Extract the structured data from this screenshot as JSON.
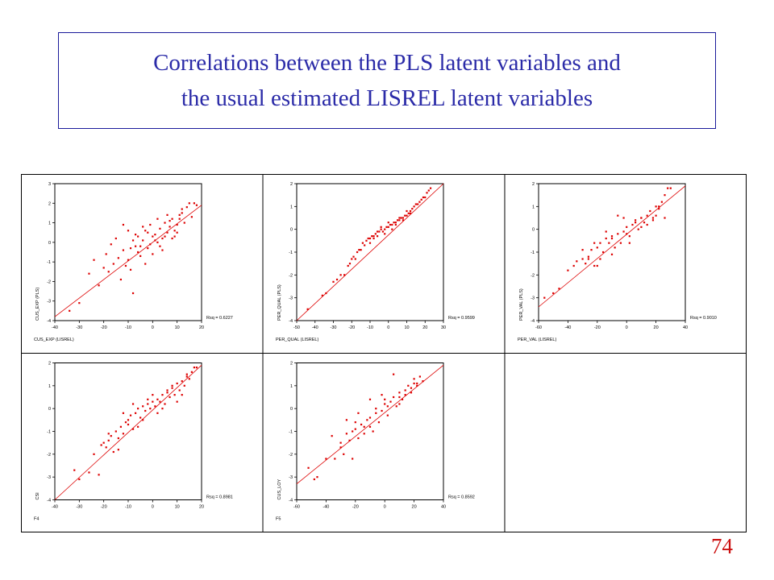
{
  "slide": {
    "title_line1": "Correlations between the PLS latent variables and",
    "title_line2": "the usual estimated LISREL latent variables",
    "page_number": "74"
  },
  "colors": {
    "title": "#2b2ba8",
    "points": "#dd0000",
    "page_number": "#cc1111",
    "grid": "#000000"
  },
  "chart_data": [
    {
      "type": "scatter",
      "xlabel": "CUS_EXP (LISREL)",
      "ylabel": "CUS_EXP (PLS)",
      "xlim": [
        -40,
        20
      ],
      "ylim": [
        -4,
        3
      ],
      "xticks": [
        -40,
        -30,
        -20,
        -10,
        0,
        10,
        20
      ],
      "yticks": [
        -4,
        -3,
        -2,
        -1,
        0,
        1,
        2,
        3
      ],
      "rsq_label": "Rsq = 0.6227",
      "fit_line": {
        "x": [
          -40,
          20
        ],
        "y": [
          -3.8,
          1.9
        ]
      },
      "points_x": [
        -34,
        -30,
        -26,
        -24,
        -22,
        -20,
        -19,
        -18,
        -17,
        -16,
        -15,
        -14,
        -13,
        -12,
        -11,
        -10,
        -9,
        -8,
        -7,
        -6,
        -5,
        -4,
        -3,
        -2,
        -1,
        0,
        1,
        2,
        3,
        4,
        5,
        6,
        7,
        8,
        9,
        10,
        11,
        12,
        13,
        14,
        15,
        16,
        17,
        18,
        -12,
        -10,
        -8,
        -6,
        -4,
        -2,
        0,
        2,
        4,
        6,
        8,
        10,
        12,
        -9,
        -7,
        -5,
        -3,
        -1,
        1,
        3,
        5,
        7,
        9,
        11
      ],
      "points_y": [
        -3.5,
        -3.1,
        -1.6,
        -0.9,
        -2.2,
        -1.3,
        -0.6,
        -1.5,
        -0.1,
        -1.1,
        0.2,
        -0.8,
        -1.9,
        -0.4,
        -1.2,
        0.6,
        -0.3,
        -2.6,
        -0.2,
        0.3,
        -0.7,
        0.1,
        -1.1,
        0.5,
        -0.1,
        0.3,
        0.4,
        0.0,
        0.7,
        0.2,
        1.0,
        0.5,
        0.8,
        1.2,
        0.6,
        0.9,
        1.4,
        1.5,
        1.0,
        1.8,
        2.0,
        1.3,
        2.0,
        1.9,
        0.9,
        -0.9,
        0.1,
        -0.5,
        0.8,
        -0.3,
        -0.6,
        1.2,
        -0.4,
        1.4,
        0.2,
        0.5,
        1.7,
        -1.4,
        0.4,
        -0.2,
        0.6,
        0.9,
        0.1,
        -0.2,
        0.3,
        1.1,
        0.3,
        1.2
      ]
    },
    {
      "type": "scatter",
      "xlabel": "PER_QUAL (LISREL)",
      "ylabel": "PER_QUAL (PLS)",
      "xlim": [
        -50,
        30
      ],
      "ylim": [
        -4,
        2
      ],
      "xticks": [
        -50,
        -40,
        -30,
        -20,
        -10,
        0,
        10,
        20,
        30
      ],
      "yticks": [
        -4,
        -3,
        -2,
        -1,
        0,
        1,
        2
      ],
      "rsq_label": "Rsq = 0.9599",
      "fit_line": {
        "x": [
          -50,
          30
        ],
        "y": [
          -4.0,
          2.0
        ]
      },
      "points_x": [
        -44,
        -36,
        -34,
        -30,
        -28,
        -26,
        -24,
        -22,
        -21,
        -20,
        -19,
        -18,
        -17,
        -16,
        -15,
        -14,
        -13,
        -12,
        -11,
        -10,
        -9,
        -8,
        -7,
        -6,
        -5,
        -4,
        -3,
        -2,
        -1,
        0,
        1,
        2,
        3,
        4,
        5,
        6,
        7,
        8,
        9,
        10,
        11,
        12,
        13,
        14,
        15,
        16,
        17,
        18,
        19,
        20,
        21,
        22,
        23,
        -10,
        -8,
        -6,
        -4,
        -2,
        0,
        2,
        4,
        6,
        8,
        10,
        12
      ],
      "points_y": [
        -3.5,
        -2.9,
        -2.8,
        -2.3,
        -2.2,
        -2.0,
        -2.0,
        -1.6,
        -1.5,
        -1.3,
        -1.2,
        -1.3,
        -1.0,
        -0.9,
        -0.9,
        -0.6,
        -0.7,
        -0.5,
        -0.4,
        -0.4,
        -0.3,
        -0.3,
        -0.2,
        -0.1,
        -0.1,
        0.0,
        -0.1,
        0.0,
        0.1,
        0.1,
        0.2,
        0.2,
        0.3,
        0.3,
        0.4,
        0.4,
        0.5,
        0.5,
        0.6,
        0.6,
        0.7,
        0.8,
        0.9,
        1.0,
        1.1,
        1.1,
        1.2,
        1.3,
        1.4,
        1.4,
        1.6,
        1.7,
        1.8,
        -0.6,
        -0.4,
        -0.3,
        0.1,
        -0.2,
        0.3,
        0.0,
        0.2,
        0.5,
        0.4,
        0.8,
        0.7
      ]
    },
    {
      "type": "scatter",
      "xlabel": "PER_VAL (LISREL)",
      "ylabel": "PER_VAL (PLS)",
      "xlim": [
        -60,
        40
      ],
      "ylim": [
        -4,
        2
      ],
      "xticks": [
        -60,
        -40,
        -20,
        0,
        20,
        40
      ],
      "yticks": [
        -4,
        -3,
        -2,
        -1,
        0,
        1,
        2
      ],
      "rsq_label": "Rsq = 0.9010",
      "fit_line": {
        "x": [
          -60,
          40
        ],
        "y": [
          -3.4,
          1.9
        ]
      },
      "points_x": [
        -56,
        -50,
        -46,
        -40,
        -36,
        -34,
        -30,
        -28,
        -26,
        -24,
        -22,
        -20,
        -18,
        -16,
        -14,
        -12,
        -10,
        -8,
        -6,
        -4,
        -2,
        0,
        2,
        4,
        6,
        8,
        10,
        12,
        14,
        16,
        18,
        20,
        22,
        24,
        26,
        28,
        30,
        -30,
        -26,
        -22,
        -18,
        -14,
        -10,
        -6,
        -2,
        2,
        6,
        10,
        14,
        18,
        22,
        26,
        -20,
        -10,
        0,
        10,
        20
      ],
      "points_y": [
        -3.0,
        -2.8,
        -2.6,
        -1.8,
        -1.6,
        -1.4,
        -1.3,
        -1.5,
        -1.2,
        -0.9,
        -1.6,
        -0.8,
        -0.6,
        -1.0,
        -0.4,
        -0.6,
        -0.3,
        -0.8,
        -0.2,
        -0.6,
        -0.1,
        0.1,
        -0.3,
        0.2,
        0.4,
        0.0,
        0.5,
        0.3,
        0.6,
        0.8,
        0.5,
        1.0,
        0.9,
        1.2,
        1.5,
        1.8,
        1.8,
        -0.9,
        -1.3,
        -0.6,
        -1.3,
        -0.1,
        -1.1,
        0.6,
        0.5,
        -0.6,
        0.3,
        0.1,
        0.2,
        0.4,
        1.0,
        0.5,
        -1.6,
        -0.4,
        -0.2,
        0.5,
        0.6
      ]
    },
    {
      "type": "scatter",
      "xlabel": "F4",
      "ylabel": "CSI",
      "xlim": [
        -40,
        20
      ],
      "ylim": [
        -4,
        2
      ],
      "xticks": [
        -40,
        -30,
        -20,
        -10,
        0,
        10,
        20
      ],
      "yticks": [
        -4,
        -3,
        -2,
        -1,
        0,
        1,
        2
      ],
      "rsq_label": "Rsq = 0.8981",
      "fit_line": {
        "x": [
          -40,
          20
        ],
        "y": [
          -4.0,
          1.9
        ]
      },
      "points_x": [
        -32,
        -30,
        -26,
        -24,
        -22,
        -21,
        -20,
        -19,
        -18,
        -17,
        -16,
        -15,
        -14,
        -13,
        -12,
        -11,
        -10,
        -9,
        -8,
        -7,
        -6,
        -5,
        -4,
        -3,
        -2,
        -1,
        0,
        1,
        2,
        3,
        4,
        5,
        6,
        7,
        8,
        9,
        10,
        11,
        12,
        13,
        14,
        15,
        16,
        17,
        18,
        -14,
        -10,
        -6,
        -2,
        2,
        6,
        10,
        14,
        -18,
        -12,
        -8,
        -4,
        0,
        4,
        8,
        12
      ],
      "points_y": [
        -2.7,
        -3.1,
        -2.8,
        -2.0,
        -2.9,
        -1.6,
        -1.5,
        -1.7,
        -1.4,
        -1.2,
        -1.9,
        -1.0,
        -1.3,
        -0.8,
        -1.1,
        -0.6,
        -0.5,
        -0.3,
        -0.9,
        -0.2,
        0.0,
        -0.4,
        0.1,
        -0.1,
        0.2,
        0.0,
        0.3,
        0.1,
        0.4,
        0.3,
        0.6,
        0.2,
        0.8,
        0.5,
        0.9,
        0.6,
        1.1,
        0.8,
        1.2,
        1.0,
        1.4,
        1.3,
        1.6,
        1.8,
        1.8,
        -1.8,
        -0.7,
        -0.8,
        0.4,
        -0.2,
        0.7,
        0.3,
        1.5,
        -1.1,
        -0.2,
        0.2,
        -0.5,
        0.6,
        0.0,
        1.0,
        0.6
      ]
    },
    {
      "type": "scatter",
      "xlabel": "F5",
      "ylabel": "CUS_LOY",
      "xlim": [
        -60,
        40
      ],
      "ylim": [
        -4,
        2
      ],
      "xticks": [
        -60,
        -40,
        -20,
        0,
        20,
        40
      ],
      "yticks": [
        -4,
        -3,
        -2,
        -1,
        0,
        1,
        2
      ],
      "rsq_label": "Rsq = 0.8592",
      "fit_line": {
        "x": [
          -60,
          40
        ],
        "y": [
          -3.3,
          1.9
        ]
      },
      "points_x": [
        -52,
        -48,
        -46,
        -40,
        -36,
        -34,
        -30,
        -28,
        -26,
        -24,
        -22,
        -20,
        -18,
        -16,
        -14,
        -12,
        -10,
        -8,
        -6,
        -4,
        -2,
        0,
        2,
        4,
        6,
        8,
        10,
        12,
        14,
        16,
        18,
        20,
        22,
        24,
        26,
        -30,
        -26,
        -22,
        -18,
        -14,
        -10,
        -6,
        -2,
        2,
        6,
        10,
        14,
        18,
        22,
        -20,
        -10,
        0,
        10,
        20
      ],
      "points_y": [
        -2.6,
        -3.1,
        -3.0,
        -2.2,
        -1.2,
        -2.2,
        -1.5,
        -2.0,
        -1.1,
        -1.4,
        -1.0,
        -0.9,
        -1.3,
        -0.7,
        -0.8,
        -0.5,
        -0.4,
        -1.0,
        -0.2,
        -0.6,
        -0.1,
        0.2,
        -0.3,
        0.3,
        0.5,
        0.1,
        0.7,
        0.4,
        0.6,
        1.0,
        0.9,
        1.3,
        1.1,
        1.4,
        1.2,
        -1.7,
        -0.5,
        -2.2,
        -0.2,
        -1.1,
        0.4,
        0.0,
        0.6,
        0.1,
        1.5,
        0.2,
        0.8,
        0.7,
        1.0,
        -0.6,
        -0.8,
        0.4,
        0.5,
        1.1
      ]
    }
  ]
}
